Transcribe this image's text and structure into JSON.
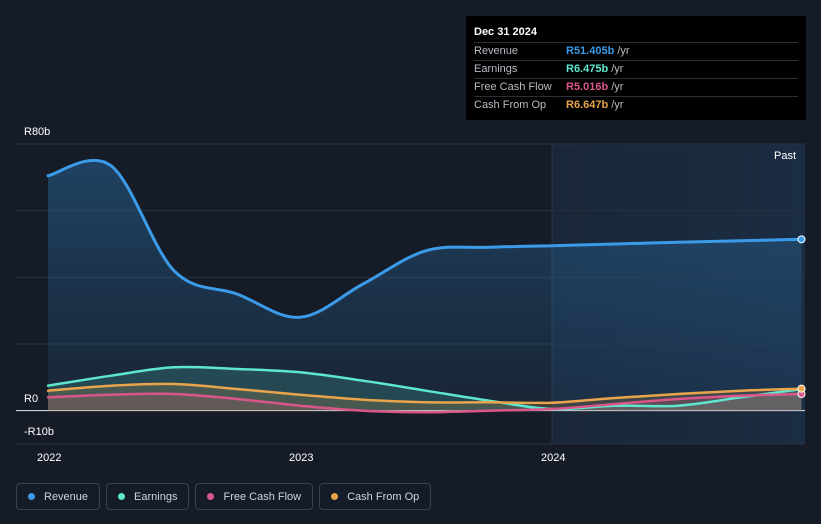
{
  "tooltip": {
    "date": "Dec 31 2024",
    "rows": [
      {
        "label": "Revenue",
        "value": "R51.405b",
        "unit": "/yr",
        "color": "#3b9be8"
      },
      {
        "label": "Earnings",
        "value": "R6.475b",
        "unit": "/yr",
        "color": "#5ee6cf"
      },
      {
        "label": "Free Cash Flow",
        "value": "R5.016b",
        "unit": "/yr",
        "color": "#d9568b"
      },
      {
        "label": "Cash From Op",
        "value": "R6.647b",
        "unit": "/yr",
        "color": "#e8a54b"
      }
    ]
  },
  "past_label": "Past",
  "legend": [
    {
      "label": "Revenue",
      "color": "#3b9be8"
    },
    {
      "label": "Earnings",
      "color": "#5ee6cf"
    },
    {
      "label": "Free Cash Flow",
      "color": "#d9568b"
    },
    {
      "label": "Cash From Op",
      "color": "#e8a54b"
    }
  ],
  "chart_data": {
    "type": "line",
    "ylim": [
      -10,
      80
    ],
    "y_ticks": [
      {
        "value": 80,
        "label": "R80b"
      },
      {
        "value": 0,
        "label": "R0"
      },
      {
        "value": -10,
        "label": "-R10b"
      }
    ],
    "x_ticks": [
      {
        "value": 2022.0,
        "label": "2022"
      },
      {
        "value": 2023.0,
        "label": "2023"
      },
      {
        "value": 2024.0,
        "label": "2024"
      }
    ],
    "xlim": [
      2021.87,
      2025.0
    ],
    "past_start": 2024.0,
    "grid": true,
    "series": [
      {
        "name": "Revenue",
        "color": "#3b9be8",
        "fill": true,
        "points": [
          [
            2022.0,
            70.5
          ],
          [
            2022.25,
            73.5
          ],
          [
            2022.5,
            42
          ],
          [
            2022.75,
            35
          ],
          [
            2023.0,
            28
          ],
          [
            2023.25,
            38
          ],
          [
            2023.5,
            48
          ],
          [
            2023.75,
            49
          ],
          [
            2024.0,
            49.5
          ],
          [
            2024.25,
            50
          ],
          [
            2024.5,
            50.5
          ],
          [
            2024.75,
            51
          ],
          [
            2024.99,
            51.4
          ]
        ]
      },
      {
        "name": "Earnings",
        "color": "#5ee6cf",
        "fill": false,
        "points": [
          [
            2022.0,
            7.5
          ],
          [
            2022.25,
            10.5
          ],
          [
            2022.5,
            13
          ],
          [
            2022.75,
            12.5
          ],
          [
            2023.0,
            11.5
          ],
          [
            2023.25,
            9
          ],
          [
            2023.5,
            6
          ],
          [
            2023.75,
            3
          ],
          [
            2024.0,
            0.5
          ],
          [
            2024.25,
            1.5
          ],
          [
            2024.5,
            1.5
          ],
          [
            2024.75,
            4
          ],
          [
            2024.99,
            6.5
          ]
        ]
      },
      {
        "name": "Free Cash Flow",
        "color": "#d9568b",
        "fill": false,
        "points": [
          [
            2022.0,
            4
          ],
          [
            2022.25,
            4.8
          ],
          [
            2022.5,
            5
          ],
          [
            2022.75,
            3.5
          ],
          [
            2023.0,
            1.5
          ],
          [
            2023.25,
            0
          ],
          [
            2023.5,
            -0.5
          ],
          [
            2023.75,
            0
          ],
          [
            2024.0,
            0.5
          ],
          [
            2024.25,
            2
          ],
          [
            2024.5,
            3.5
          ],
          [
            2024.75,
            4.5
          ],
          [
            2024.99,
            5
          ]
        ]
      },
      {
        "name": "Cash From Op",
        "color": "#e8a54b",
        "fill": false,
        "points": [
          [
            2022.0,
            6
          ],
          [
            2022.25,
            7.5
          ],
          [
            2022.5,
            8
          ],
          [
            2022.75,
            6.5
          ],
          [
            2023.0,
            4.8
          ],
          [
            2023.25,
            3.3
          ],
          [
            2023.5,
            2.5
          ],
          [
            2023.75,
            2.5
          ],
          [
            2024.0,
            2.4
          ],
          [
            2024.25,
            3.8
          ],
          [
            2024.5,
            5
          ],
          [
            2024.75,
            6
          ],
          [
            2024.99,
            6.6
          ]
        ]
      }
    ]
  }
}
